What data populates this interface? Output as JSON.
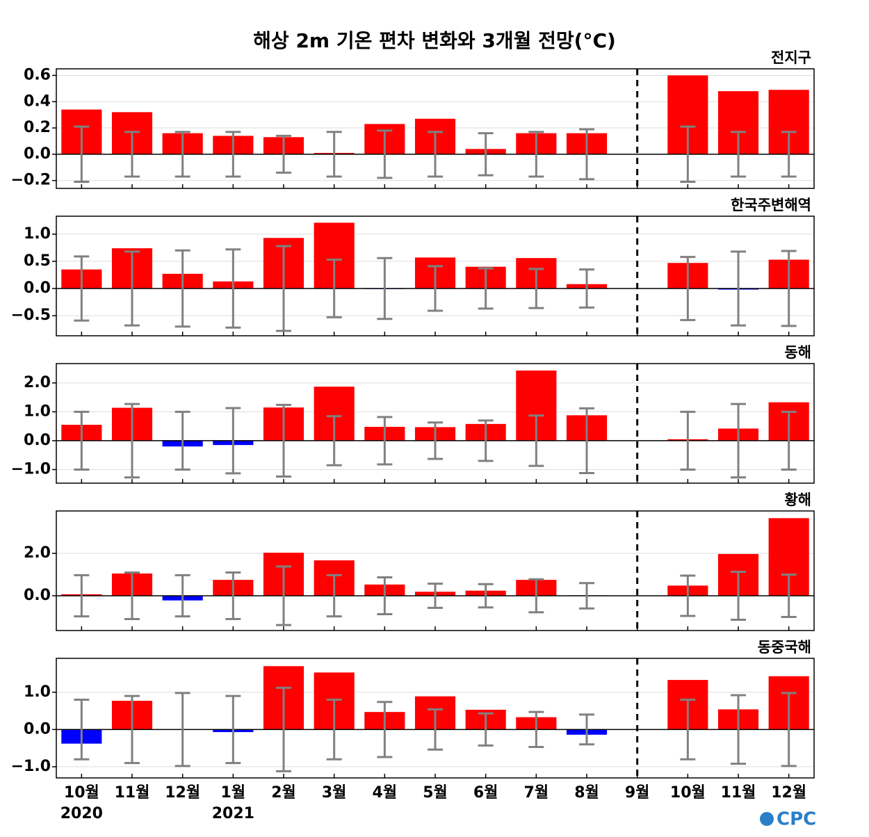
{
  "title": "해상 2m 기온 편차 변화와 3개월 전망(°C)",
  "categories": [
    "10월",
    "11월",
    "12월",
    "1월",
    "2월",
    "3월",
    "4월",
    "5월",
    "6월",
    "7월",
    "8월",
    "9월",
    "10월",
    "11월",
    "12월"
  ],
  "years": [
    "2020",
    null,
    null,
    "2021",
    null,
    null,
    null,
    null,
    null,
    null,
    null,
    null,
    null,
    null,
    null
  ],
  "logo": "CPC",
  "chart_data": [
    {
      "type": "bar",
      "title": "전지구",
      "positive_color": "#ff0000",
      "negative_color": "#0000ff",
      "error_color": "#808080",
      "grid": true,
      "values": [
        0.34,
        0.32,
        0.16,
        0.14,
        0.13,
        0.01,
        0.23,
        0.27,
        0.04,
        0.16,
        0.16,
        0,
        0.6,
        0.48,
        0.49
      ],
      "errors": [
        0.21,
        0.17,
        0.17,
        0.17,
        0.14,
        0.17,
        0.18,
        0.17,
        0.16,
        0.17,
        0.19,
        null,
        0.21,
        0.17,
        0.17
      ],
      "ylim": [
        -0.26,
        0.65
      ],
      "yticks": [
        {
          "value": -0.2,
          "label": "−0.2"
        },
        {
          "value": 0,
          "label": "0.0"
        },
        0.2,
        0.4,
        0.6
      ]
    },
    {
      "type": "bar",
      "title": "한국주변해역",
      "positive_color": "#ff0000",
      "negative_color": "#0000ff",
      "error_color": "#808080",
      "grid": true,
      "values": [
        0.35,
        0.74,
        0.27,
        0.13,
        0.93,
        1.21,
        -0.01,
        0.57,
        0.4,
        0.56,
        0.08,
        0,
        0.47,
        -0.02,
        0.53
      ],
      "errors": [
        0.59,
        0.68,
        0.7,
        0.72,
        0.78,
        0.53,
        0.56,
        0.41,
        0.37,
        0.36,
        0.35,
        null,
        0.58,
        0.68,
        0.69
      ],
      "ylim": [
        -0.87,
        1.33
      ],
      "yticks": [
        {
          "value": -0.5,
          "label": "−0.5"
        },
        {
          "value": 0,
          "label": "0.0"
        },
        0.5,
        {
          "value": 1,
          "label": "1.0"
        }
      ]
    },
    {
      "type": "bar",
      "title": "동해",
      "positive_color": "#ff0000",
      "negative_color": "#0000ff",
      "error_color": "#808080",
      "grid": true,
      "values": [
        0.55,
        1.14,
        -0.2,
        -0.15,
        1.15,
        1.87,
        0.48,
        0.47,
        0.58,
        2.43,
        0.88,
        0,
        0.05,
        0.42,
        1.33
      ],
      "errors": [
        1.0,
        1.27,
        1.0,
        1.13,
        1.24,
        0.85,
        0.82,
        0.63,
        0.7,
        0.87,
        1.12,
        null,
        1.0,
        1.27,
        1.0
      ],
      "ylim": [
        -1.47,
        2.67
      ],
      "yticks": [
        {
          "value": -1,
          "label": "−1.0"
        },
        {
          "value": 0,
          "label": "0.0"
        },
        {
          "value": 1,
          "label": "1.0"
        },
        {
          "value": 2,
          "label": "2.0"
        }
      ]
    },
    {
      "type": "bar",
      "title": "황해",
      "positive_color": "#ff0000",
      "negative_color": "#0000ff",
      "error_color": "#808080",
      "grid": true,
      "values": [
        0.07,
        1.05,
        -0.22,
        0.75,
        2.03,
        1.67,
        0.53,
        0.19,
        0.24,
        0.75,
        0.02,
        0,
        0.48,
        1.97,
        3.66
      ],
      "errors": [
        0.97,
        1.1,
        0.97,
        1.1,
        1.38,
        0.97,
        0.87,
        0.57,
        0.55,
        0.78,
        0.6,
        null,
        0.95,
        1.13,
        1.0
      ],
      "ylim": [
        -1.64,
        4.0
      ],
      "yticks": [
        {
          "value": 0,
          "label": "0.0"
        },
        {
          "value": 2,
          "label": "2.0"
        }
      ]
    },
    {
      "type": "bar",
      "title": "동중국해",
      "positive_color": "#ff0000",
      "negative_color": "#0000ff",
      "error_color": "#808080",
      "grid": true,
      "values": [
        -0.38,
        0.77,
        0.0,
        -0.07,
        1.7,
        1.53,
        0.47,
        0.89,
        0.53,
        0.33,
        -0.14,
        0,
        1.33,
        0.54,
        1.43
      ],
      "errors": [
        0.8,
        0.9,
        0.98,
        0.9,
        1.12,
        0.8,
        0.74,
        0.54,
        0.43,
        0.47,
        0.4,
        null,
        0.8,
        0.92,
        0.98
      ],
      "ylim": [
        -1.3,
        1.91
      ],
      "yticks": [
        {
          "value": -1,
          "label": "−1.0"
        },
        {
          "value": 0,
          "label": "0.0"
        },
        {
          "value": 1,
          "label": "1.0"
        }
      ]
    }
  ]
}
